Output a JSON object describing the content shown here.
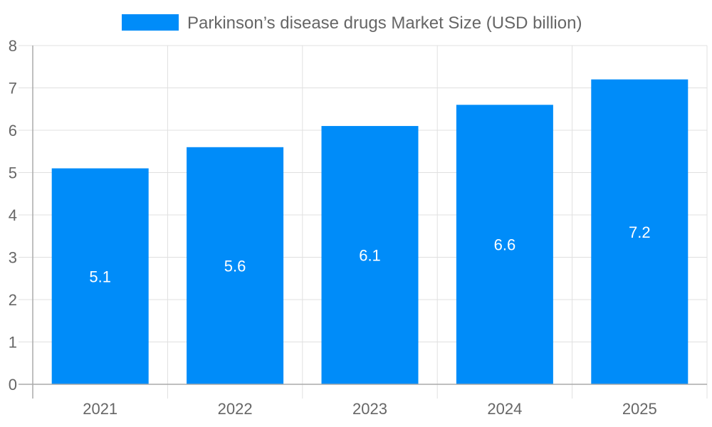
{
  "chart_data": {
    "type": "bar",
    "categories": [
      "2021",
      "2022",
      "2023",
      "2024",
      "2025"
    ],
    "series": [
      {
        "name": "Parkinson’s disease drugs Market Size (USD billion)",
        "values": [
          5.1,
          5.6,
          6.1,
          6.6,
          7.2
        ],
        "color": "#008cf9"
      }
    ],
    "data_labels": [
      "5.1",
      "5.6",
      "6.1",
      "6.6",
      "7.2"
    ],
    "title": "",
    "xlabel": "",
    "ylabel": "",
    "ylim": [
      0,
      8
    ],
    "yticks": [
      "0",
      "1",
      "2",
      "3",
      "4",
      "5",
      "6",
      "7",
      "8"
    ],
    "grid": true,
    "legend_position": "top"
  }
}
